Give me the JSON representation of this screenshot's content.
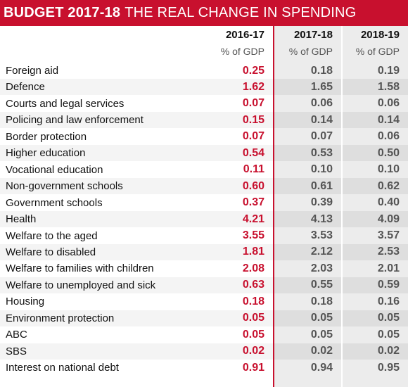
{
  "title": {
    "bold": "BUDGET 2017-18",
    "rest": "THE REAL CHANGE IN SPENDING"
  },
  "colors": {
    "accent": "#c8102e",
    "shade": "#f4f4f4",
    "column_bg": "#ececec"
  },
  "chart_data": {
    "type": "table",
    "columns": [
      "2016-17",
      "2017-18",
      "2018-19"
    ],
    "units": [
      "% of GDP",
      "% of GDP",
      "% of GDP"
    ],
    "rows": [
      {
        "category": "Foreign aid",
        "values": [
          "0.25",
          "0.18",
          "0.19"
        ]
      },
      {
        "category": "Defence",
        "values": [
          "1.62",
          "1.65",
          "1.58"
        ]
      },
      {
        "category": "Courts and legal services",
        "values": [
          "0.07",
          "0.06",
          "0.06"
        ]
      },
      {
        "category": "Policing and law enforcement",
        "values": [
          "0.15",
          "0.14",
          "0.14"
        ]
      },
      {
        "category": "Border protection",
        "values": [
          "0.07",
          "0.07",
          "0.06"
        ]
      },
      {
        "category": "Higher education",
        "values": [
          "0.54",
          "0.53",
          "0.50"
        ]
      },
      {
        "category": "Vocational education",
        "values": [
          "0.11",
          "0.10",
          "0.10"
        ]
      },
      {
        "category": "Non-government schools",
        "values": [
          "0.60",
          "0.61",
          "0.62"
        ]
      },
      {
        "category": "Government schools",
        "values": [
          "0.37",
          "0.39",
          "0.40"
        ]
      },
      {
        "category": "Health",
        "values": [
          "4.21",
          "4.13",
          "4.09"
        ]
      },
      {
        "category": "Welfare to the aged",
        "values": [
          "3.55",
          "3.53",
          "3.57"
        ]
      },
      {
        "category": "Welfare to disabled",
        "values": [
          "1.81",
          "2.12",
          "2.53"
        ]
      },
      {
        "category": "Welfare to families with children",
        "values": [
          "2.08",
          "2.03",
          "2.01"
        ]
      },
      {
        "category": "Welfare to unemployed and sick",
        "values": [
          "0.63",
          "0.55",
          "0.59"
        ]
      },
      {
        "category": "Housing",
        "values": [
          "0.18",
          "0.18",
          "0.16"
        ]
      },
      {
        "category": "Environment protection",
        "values": [
          "0.05",
          "0.05",
          "0.05"
        ]
      },
      {
        "category": "ABC",
        "values": [
          "0.05",
          "0.05",
          "0.05"
        ]
      },
      {
        "category": "SBS",
        "values": [
          "0.02",
          "0.02",
          "0.02"
        ]
      },
      {
        "category": "Interest on national debt",
        "values": [
          "0.91",
          "0.94",
          "0.95"
        ]
      }
    ]
  }
}
